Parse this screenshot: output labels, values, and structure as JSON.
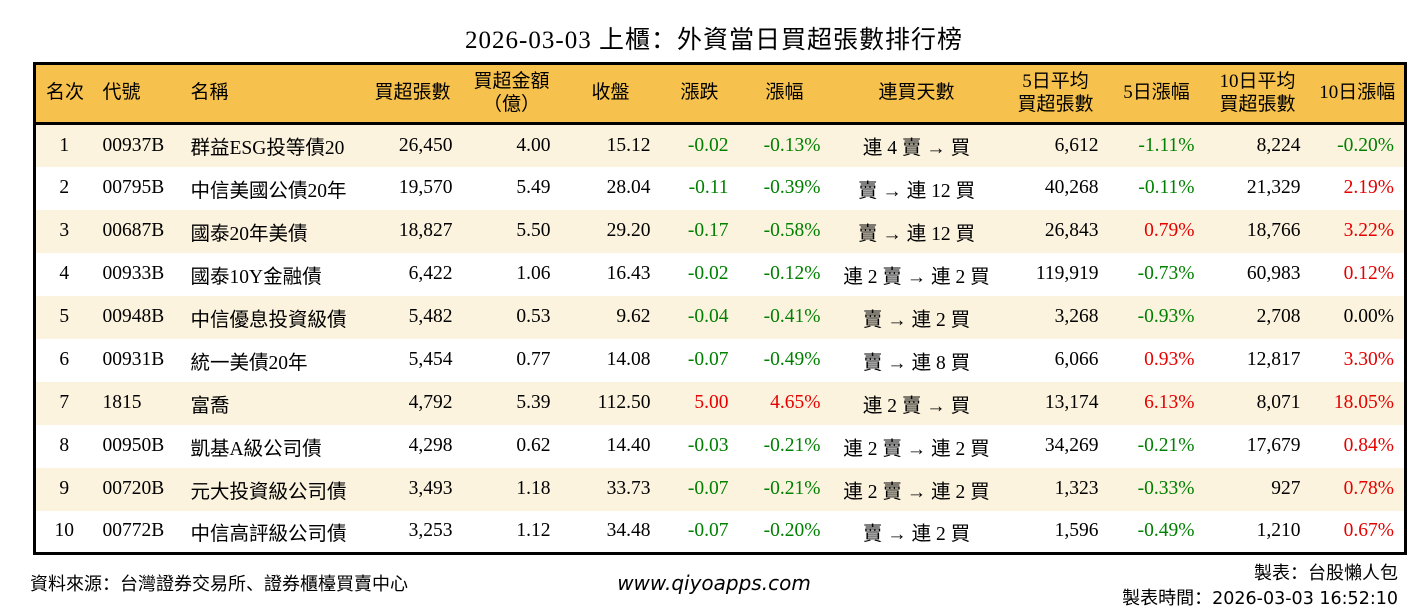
{
  "title": "2026-03-03 上櫃：外資當日買超張數排行榜",
  "colors": {
    "up_red": "#e60000",
    "down_green": "#008000",
    "header_bg": "#f6c14c",
    "stripe_cream": "#fbf3de"
  },
  "table": {
    "headers": [
      "名次",
      "代號",
      "名稱",
      "買超張數",
      "買超金額\n（億）",
      "收盤",
      "漲跌",
      "漲幅",
      "連買天數",
      "5日平均\n買超張數",
      "5日漲幅",
      "10日平均\n買超張數",
      "10日漲幅"
    ],
    "col_names": [
      "rank",
      "stock-code",
      "stock-name",
      "net-buy-volume",
      "net-buy-amount",
      "close-price",
      "price-change",
      "change-percent",
      "buy-streak",
      "avg5-net-buy-volume",
      "change-percent-5d",
      "avg10-net-buy-volume",
      "change-percent-10d"
    ],
    "color_columns": [
      6,
      7,
      10,
      12
    ],
    "rows": [
      [
        "1",
        "00937B",
        "群益ESG投等債20",
        "26,450",
        "4.00",
        "15.12",
        "-0.02",
        "-0.13%",
        "連 4 賣 → 買",
        "6,612",
        "-1.11%",
        "8,224",
        "-0.20%"
      ],
      [
        "2",
        "00795B",
        "中信美國公債20年",
        "19,570",
        "5.49",
        "28.04",
        "-0.11",
        "-0.39%",
        "賣 → 連 12 買",
        "40,268",
        "-0.11%",
        "21,329",
        "2.19%"
      ],
      [
        "3",
        "00687B",
        "國泰20年美債",
        "18,827",
        "5.50",
        "29.20",
        "-0.17",
        "-0.58%",
        "賣 → 連 12 買",
        "26,843",
        "0.79%",
        "18,766",
        "3.22%"
      ],
      [
        "4",
        "00933B",
        "國泰10Y金融債",
        "6,422",
        "1.06",
        "16.43",
        "-0.02",
        "-0.12%",
        "連 2 賣 → 連 2 買",
        "119,919",
        "-0.73%",
        "60,983",
        "0.12%"
      ],
      [
        "5",
        "00948B",
        "中信優息投資級債",
        "5,482",
        "0.53",
        "9.62",
        "-0.04",
        "-0.41%",
        "賣 → 連 2 買",
        "3,268",
        "-0.93%",
        "2,708",
        "0.00%"
      ],
      [
        "6",
        "00931B",
        "統一美債20年",
        "5,454",
        "0.77",
        "14.08",
        "-0.07",
        "-0.49%",
        "賣 → 連 8 買",
        "6,066",
        "0.93%",
        "12,817",
        "3.30%"
      ],
      [
        "7",
        "1815",
        "富喬",
        "4,792",
        "5.39",
        "112.50",
        "5.00",
        "4.65%",
        "連 2 賣 → 買",
        "13,174",
        "6.13%",
        "8,071",
        "18.05%"
      ],
      [
        "8",
        "00950B",
        "凱基A級公司債",
        "4,298",
        "0.62",
        "14.40",
        "-0.03",
        "-0.21%",
        "連 2 賣 → 連 2 買",
        "34,269",
        "-0.21%",
        "17,679",
        "0.84%"
      ],
      [
        "9",
        "00720B",
        "元大投資級公司債",
        "3,493",
        "1.18",
        "33.73",
        "-0.07",
        "-0.21%",
        "連 2 賣 → 連 2 買",
        "1,323",
        "-0.33%",
        "927",
        "0.78%"
      ],
      [
        "10",
        "00772B",
        "中信高評級公司債",
        "3,253",
        "1.12",
        "34.48",
        "-0.07",
        "-0.20%",
        "賣 → 連 2 買",
        "1,596",
        "-0.49%",
        "1,210",
        "0.67%"
      ]
    ]
  },
  "footer": {
    "source": "資料來源：台灣證券交易所、證券櫃檯買賣中心",
    "website": "www.qiyoapps.com",
    "maker": "製表：台股懶人包",
    "made_time_label": "製表時間：",
    "made_time_value": "2026-03-03 16:52:10"
  }
}
